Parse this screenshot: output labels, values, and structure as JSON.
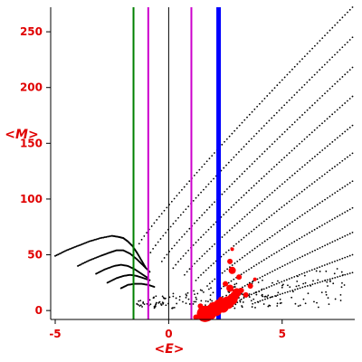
{
  "chart_data": {
    "type": "scatter",
    "xlabel": "<E>",
    "ylabel": "<M>",
    "xlim": [
      -5.2,
      8.2
    ],
    "ylim": [
      -8,
      272
    ],
    "x_ticks": [
      -5,
      0,
      5
    ],
    "y_ticks": [
      0,
      50,
      100,
      150,
      200,
      250
    ],
    "grid": false,
    "colors": {
      "axis": "#000000",
      "labels": "#e00000",
      "points": "#000000",
      "highlight": "#ff0000",
      "line_green": "#008000",
      "line_magenta": "#cc00cc",
      "line_blue": "#0000ff"
    },
    "vertical_lines": [
      {
        "x": -1.55,
        "color": "#008000",
        "width": 2
      },
      {
        "x": -0.9,
        "color": "#cc00cc",
        "width": 2
      },
      {
        "x": 1.0,
        "color": "#cc00cc",
        "width": 2
      },
      {
        "x": 2.2,
        "color": "#0000ff",
        "width": 5
      }
    ],
    "left_curves": [
      [
        [
          -5,
          49
        ],
        [
          -4.5,
          54
        ],
        [
          -4,
          58
        ],
        [
          -3.5,
          62
        ],
        [
          -3,
          65
        ],
        [
          -2.5,
          67
        ],
        [
          -2.2,
          66
        ],
        [
          -2,
          65
        ],
        [
          -1.8,
          62
        ],
        [
          -1.6,
          58
        ],
        [
          -1.4,
          52
        ],
        [
          -1.2,
          45
        ],
        [
          -1,
          38
        ]
      ],
      [
        [
          -4,
          40
        ],
        [
          -3.5,
          45
        ],
        [
          -3,
          49
        ],
        [
          -2.6,
          52
        ],
        [
          -2.3,
          54
        ],
        [
          -2,
          54
        ],
        [
          -1.7,
          51
        ],
        [
          -1.4,
          46
        ],
        [
          -1.1,
          40
        ],
        [
          -0.8,
          34
        ]
      ],
      [
        [
          -3.2,
          33
        ],
        [
          -2.8,
          37
        ],
        [
          -2.4,
          40
        ],
        [
          -2.1,
          41
        ],
        [
          -1.8,
          40
        ],
        [
          -1.5,
          37
        ],
        [
          -1.2,
          33
        ],
        [
          -0.9,
          29
        ]
      ],
      [
        [
          -2.7,
          25
        ],
        [
          -2.3,
          29
        ],
        [
          -2,
          31
        ],
        [
          -1.7,
          32
        ],
        [
          -1.4,
          31
        ],
        [
          -1.1,
          29
        ],
        [
          -0.8,
          27
        ]
      ],
      [
        [
          -2.1,
          20
        ],
        [
          -1.8,
          23
        ],
        [
          -1.5,
          24
        ],
        [
          -1.2,
          24
        ],
        [
          -0.9,
          23
        ],
        [
          -0.6,
          21
        ]
      ]
    ],
    "dotted_curves": [
      {
        "x_start": -1.3,
        "x_end": 8.1,
        "y_start": 60,
        "y_end": 272
      },
      {
        "x_start": -0.8,
        "x_end": 8.1,
        "y_start": 52,
        "y_end": 245
      },
      {
        "x_start": -0.3,
        "x_end": 8.1,
        "y_start": 44,
        "y_end": 218
      },
      {
        "x_start": 0.2,
        "x_end": 8.1,
        "y_start": 38,
        "y_end": 192
      },
      {
        "x_start": 0.7,
        "x_end": 8.1,
        "y_start": 32,
        "y_end": 166
      },
      {
        "x_start": 1.2,
        "x_end": 8.1,
        "y_start": 27,
        "y_end": 141
      },
      {
        "x_start": 1.7,
        "x_end": 8.1,
        "y_start": 22,
        "y_end": 116
      },
      {
        "x_start": 2.2,
        "x_end": 8.1,
        "y_start": 18,
        "y_end": 92
      },
      {
        "x_start": 2.7,
        "x_end": 8.1,
        "y_start": 14,
        "y_end": 70
      },
      {
        "x_start": 3.2,
        "x_end": 8.1,
        "y_start": 10,
        "y_end": 50
      },
      {
        "x_start": 3.7,
        "x_end": 8.1,
        "y_start": 6,
        "y_end": 34
      }
    ],
    "red_points": [
      {
        "x": 1.6,
        "y": -3,
        "size": 9
      },
      {
        "x": 1.8,
        "y": -2,
        "size": 8
      },
      {
        "x": 1.7,
        "y": -4,
        "size": 7
      },
      {
        "x": 1.9,
        "y": 0,
        "size": 7
      },
      {
        "x": 2.0,
        "y": 2,
        "size": 7
      },
      {
        "x": 2.1,
        "y": 0,
        "size": 6
      },
      {
        "x": 2.4,
        "y": 3,
        "size": 6
      },
      {
        "x": 2.6,
        "y": 7,
        "size": 7
      },
      {
        "x": 2.8,
        "y": 10,
        "size": 6
      },
      {
        "x": 2.9,
        "y": 13,
        "size": 5
      },
      {
        "x": 3.0,
        "y": 16,
        "size": 5
      },
      {
        "x": 2.7,
        "y": 20,
        "size": 4
      },
      {
        "x": 3.2,
        "y": 18,
        "size": 3
      },
      {
        "x": 3.4,
        "y": 14,
        "size": 3
      },
      {
        "x": 3.6,
        "y": 22,
        "size": 3
      },
      {
        "x": 2.8,
        "y": 36,
        "size": 4
      },
      {
        "x": 2.7,
        "y": 44,
        "size": 3
      },
      {
        "x": 2.8,
        "y": 55,
        "size": 2
      },
      {
        "x": 3.1,
        "y": 30,
        "size": 3
      },
      {
        "x": 3.8,
        "y": 28,
        "size": 2
      },
      {
        "x": 1.2,
        "y": -6,
        "size": 3
      },
      {
        "x": 1.4,
        "y": 4,
        "size": 3
      },
      {
        "x": 2.3,
        "y": 10,
        "size": 3
      },
      {
        "x": 2.5,
        "y": 24,
        "size": 3
      },
      {
        "x": 2.2,
        "y": 6,
        "size": 5
      }
    ]
  }
}
